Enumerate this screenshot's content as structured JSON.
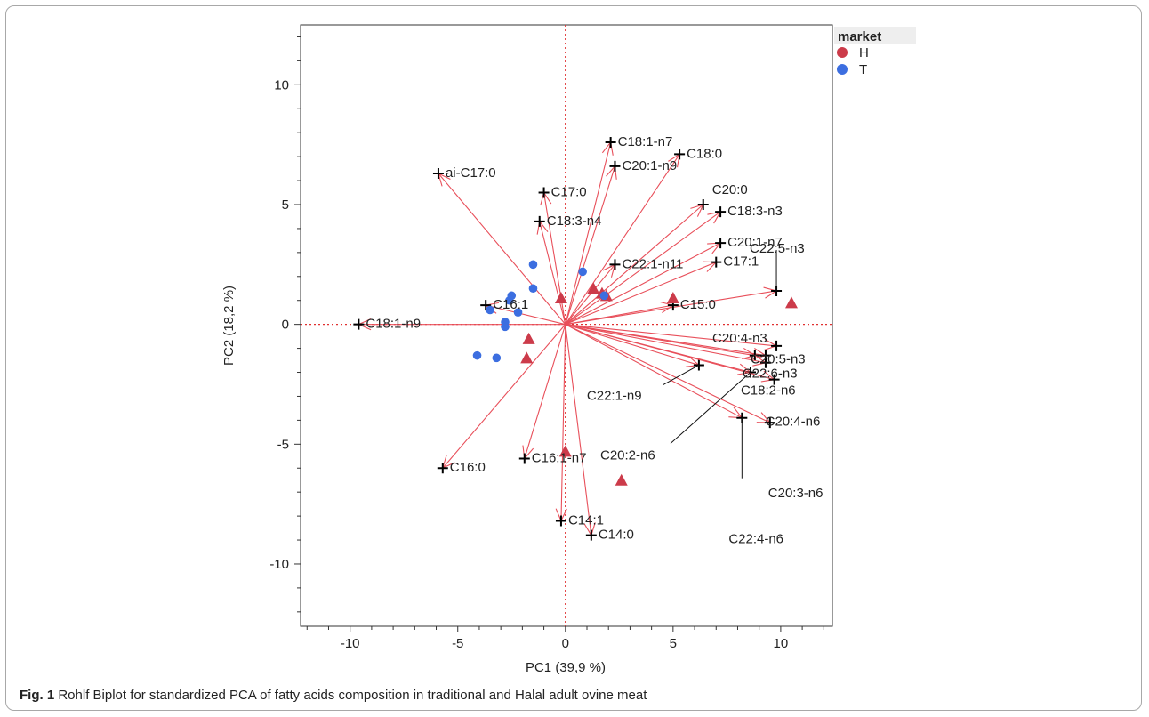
{
  "figure": {
    "caption_label": "Fig. 1",
    "caption_text": "Rohlf Biplot for standardized PCA of fatty acids composition in traditional and Halal adult ovine meat"
  },
  "chart_data": {
    "type": "scatter",
    "xlabel": "PC1 (39,9 %)",
    "ylabel": "PC2 (18,2 %)",
    "xlim": [
      -12.3,
      12.4
    ],
    "ylim": [
      -12.6,
      12.5
    ],
    "xticks": [
      "-10",
      "-5",
      "0",
      "5",
      "10"
    ],
    "yticks": [
      "10",
      "5",
      "0",
      "-5",
      "-10"
    ],
    "reference_lines": {
      "x": 0,
      "y": 0,
      "color": "#e03030",
      "style": "dotted"
    },
    "legend": {
      "title": "market",
      "position": "top-right",
      "entries": [
        {
          "label": "H",
          "color": "#cc3b4a"
        },
        {
          "label": "T",
          "color": "#3c6ee0"
        }
      ]
    },
    "series": [
      {
        "name": "H",
        "marker": "triangle",
        "color": "#cc3b4a",
        "points": [
          [
            1.3,
            1.5
          ],
          [
            1.7,
            1.3
          ],
          [
            1.9,
            1.2
          ],
          [
            -0.2,
            1.1
          ],
          [
            5.0,
            1.1
          ],
          [
            10.5,
            0.9
          ],
          [
            -1.7,
            -0.6
          ],
          [
            -1.8,
            -1.4
          ],
          [
            0.0,
            -5.3
          ],
          [
            2.6,
            -6.5
          ]
        ]
      },
      {
        "name": "T",
        "marker": "circle",
        "color": "#3c6ee0",
        "points": [
          [
            -1.5,
            2.5
          ],
          [
            0.8,
            2.2
          ],
          [
            -1.5,
            1.5
          ],
          [
            1.8,
            1.2
          ],
          [
            -2.5,
            1.2
          ],
          [
            -2.6,
            1.0
          ],
          [
            -3.5,
            0.6
          ],
          [
            -2.2,
            0.5
          ],
          [
            -2.8,
            0.1
          ],
          [
            -2.8,
            -0.1
          ],
          [
            -4.1,
            -1.3
          ],
          [
            -3.2,
            -1.4
          ]
        ]
      }
    ],
    "loadings": [
      {
        "label": "C18:1-n7",
        "x": 2.1,
        "y": 7.6
      },
      {
        "label": "C18:0",
        "x": 5.3,
        "y": 7.1
      },
      {
        "label": "C20:1-n9",
        "x": 2.3,
        "y": 6.6
      },
      {
        "label": "ai-C17:0",
        "x": -5.9,
        "y": 6.3
      },
      {
        "label": "C17:0",
        "x": -1.0,
        "y": 5.5
      },
      {
        "label": "C20:0",
        "x": 6.4,
        "y": 5.0
      },
      {
        "label": "C18:3-n3",
        "x": 7.2,
        "y": 4.7
      },
      {
        "label": "C18:3-n4",
        "x": -1.2,
        "y": 4.3
      },
      {
        "label": "C20:1-n7",
        "x": 7.2,
        "y": 3.4
      },
      {
        "label": "C22:1-n11",
        "x": 2.3,
        "y": 2.5
      },
      {
        "label": "C17:1",
        "x": 7.0,
        "y": 2.6
      },
      {
        "label": "C22:5-n3",
        "x": 9.8,
        "y": 1.4
      },
      {
        "label": "C16:1",
        "x": -3.7,
        "y": 0.8
      },
      {
        "label": "C15:0",
        "x": 5.0,
        "y": 0.8
      },
      {
        "label": "C18:1-n9",
        "x": -9.6,
        "y": 0.0
      },
      {
        "label": "C20:4-n3",
        "x": 9.8,
        "y": -0.9
      },
      {
        "label": "C20:5-n3",
        "x": 9.3,
        "y": -1.3
      },
      {
        "label": "C22:6-n3",
        "x": 8.8,
        "y": -1.3
      },
      {
        "label": "C18:2-n6",
        "x": 9.3,
        "y": -1.6
      },
      {
        "label": "C22:1-n9",
        "x": 6.2,
        "y": -1.7
      },
      {
        "label": "C20:2-n6",
        "x": 8.6,
        "y": -2.0
      },
      {
        "label": "C20:4-n6",
        "x": 9.7,
        "y": -2.3
      },
      {
        "label": "C22:4-n6",
        "x": 8.2,
        "y": -3.9
      },
      {
        "label": "C20:3-n6",
        "x": 9.5,
        "y": -4.1
      },
      {
        "label": "C16:1-n7",
        "x": -1.9,
        "y": -5.6
      },
      {
        "label": "C16:0",
        "x": -5.7,
        "y": -6.0
      },
      {
        "label": "C14:1",
        "x": -0.2,
        "y": -8.2
      },
      {
        "label": "C14:0",
        "x": 1.2,
        "y": -8.8
      }
    ]
  }
}
